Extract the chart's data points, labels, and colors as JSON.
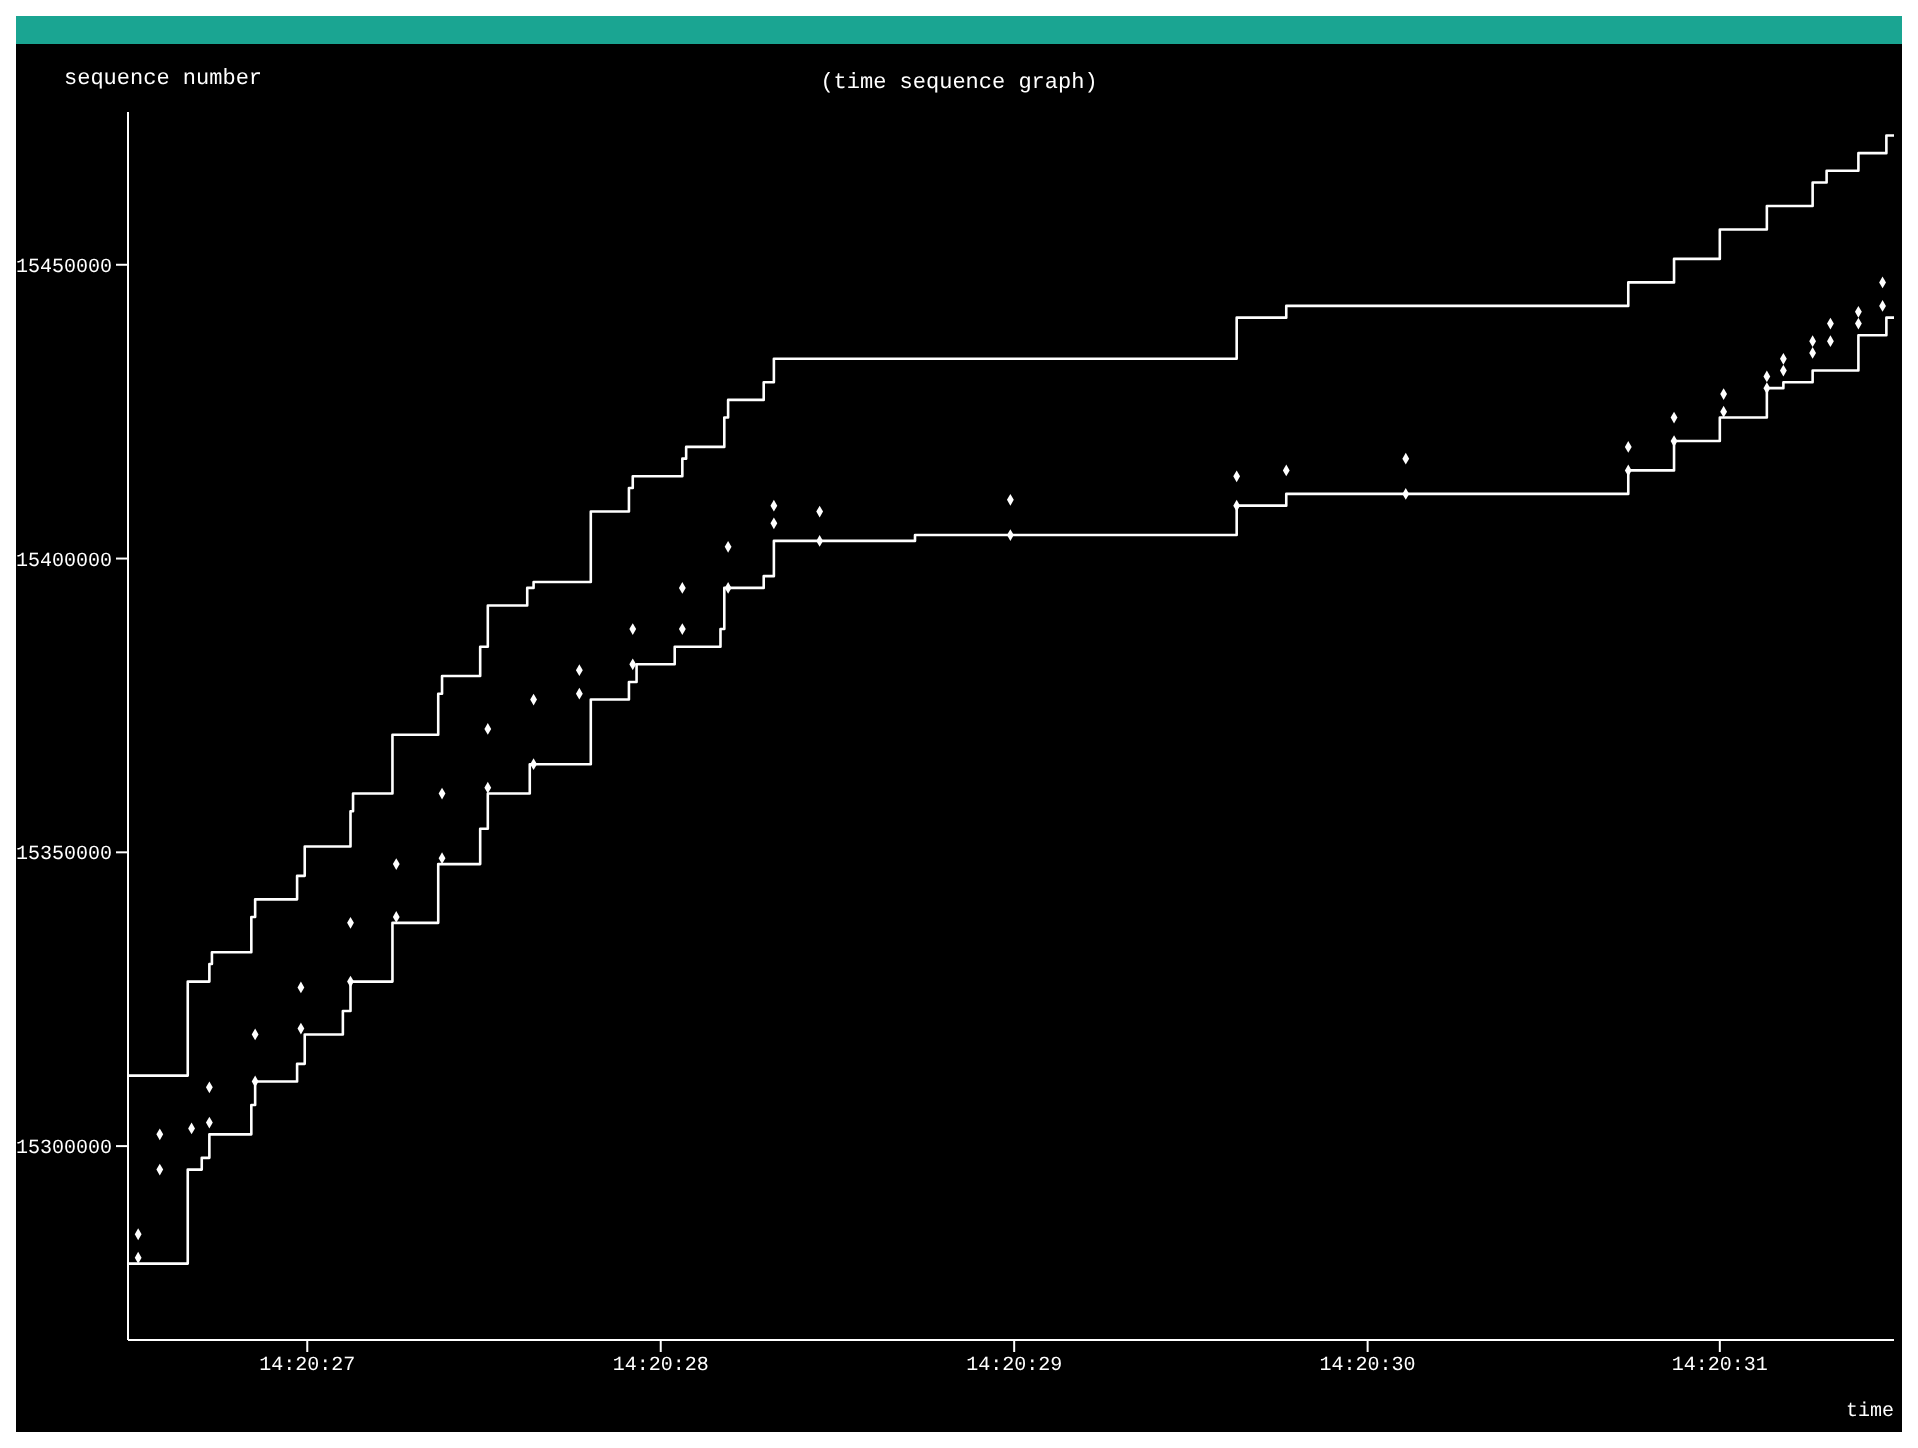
{
  "chart_data": {
    "type": "step",
    "title": "(time sequence graph)",
    "xlabel": "time",
    "ylabel": "sequence number",
    "xlim": [
      14.340692,
      14.342081
    ],
    "xticks": [
      {
        "value": 14.340833,
        "label": "14:20:27"
      },
      {
        "value": 14.341111,
        "label": "14:20:28"
      },
      {
        "value": 14.341389,
        "label": "14:20:29"
      },
      {
        "value": 14.341667,
        "label": "14:20:30"
      },
      {
        "value": 14.341944,
        "label": "14:20:31"
      }
    ],
    "ylim": [
      15267000,
      15476000
    ],
    "yticks": [
      15300000,
      15350000,
      15400000,
      15450000
    ],
    "series": [
      {
        "color": "#ffffff",
        "x": [
          14.340692,
          14.340739,
          14.340756,
          14.340758,
          14.340789,
          14.340792,
          14.340825,
          14.340831,
          14.340867,
          14.340869,
          14.3409,
          14.340936,
          14.340939,
          14.340969,
          14.340975,
          14.341006,
          14.341011,
          14.341056,
          14.341086,
          14.341089,
          14.341128,
          14.341131,
          14.341161,
          14.341164,
          14.341192,
          14.3412,
          14.341564,
          14.341603,
          14.341872,
          14.341908,
          14.341944,
          14.341981,
          14.342017,
          14.342028,
          14.342053,
          14.342075,
          14.342081
        ],
        "values": [
          15312000,
          15328000,
          15331000,
          15333000,
          15339000,
          15342000,
          15346000,
          15351000,
          15357000,
          15360000,
          15370000,
          15377000,
          15380000,
          15385000,
          15392000,
          15395000,
          15396000,
          15408000,
          15412000,
          15414000,
          15417000,
          15419000,
          15424000,
          15427000,
          15430000,
          15434000,
          15441000,
          15443000,
          15447000,
          15451000,
          15456000,
          15460000,
          15464000,
          15466000,
          15469000,
          15472000,
          15472000
        ]
      },
      {
        "color": "#ffffff",
        "x": [
          14.340692,
          14.340739,
          14.34075,
          14.340756,
          14.340789,
          14.340792,
          14.340825,
          14.340831,
          14.340861,
          14.340867,
          14.3409,
          14.340936,
          14.340969,
          14.340975,
          14.341008,
          14.341056,
          14.341086,
          14.341092,
          14.341122,
          14.341158,
          14.341161,
          14.341192,
          14.3412,
          14.341311,
          14.341564,
          14.341603,
          14.341872,
          14.341908,
          14.341944,
          14.341981,
          14.341994,
          14.342017,
          14.342053,
          14.342075,
          14.342081
        ],
        "values": [
          15280000,
          15296000,
          15298000,
          15302000,
          15307000,
          15311000,
          15314000,
          15319000,
          15323000,
          15328000,
          15338000,
          15348000,
          15354000,
          15360000,
          15365000,
          15376000,
          15379000,
          15382000,
          15385000,
          15388000,
          15395000,
          15397000,
          15403000,
          15404000,
          15409000,
          15411000,
          15415000,
          15420000,
          15424000,
          15429000,
          15430000,
          15432000,
          15438000,
          15441000,
          15441000
        ]
      },
      {
        "type": "scatter",
        "color": "#ffffff",
        "marker": "diamond",
        "x": [
          14.3407,
          14.3407,
          14.340717,
          14.340717,
          14.340742,
          14.340756,
          14.340756,
          14.340792,
          14.340792,
          14.340828,
          14.340828,
          14.340867,
          14.340867,
          14.340903,
          14.340903,
          14.340939,
          14.340939,
          14.340975,
          14.340975,
          14.341011,
          14.341011,
          14.341047,
          14.341047,
          14.341089,
          14.341089,
          14.341128,
          14.341128,
          14.341164,
          14.341164,
          14.3412,
          14.3412,
          14.341236,
          14.341236,
          14.341386,
          14.341386,
          14.341564,
          14.341564,
          14.341603,
          14.341697,
          14.341697,
          14.341872,
          14.341872,
          14.341908,
          14.341908,
          14.341947,
          14.341947,
          14.341981,
          14.341981,
          14.341994,
          14.341994,
          14.342017,
          14.342017,
          14.342031,
          14.342031,
          14.342053,
          14.342053,
          14.342072,
          14.342072
        ],
        "values": [
          15285000,
          15281000,
          15302000,
          15296000,
          15303000,
          15310000,
          15304000,
          15319000,
          15311000,
          15327000,
          15320000,
          15338000,
          15328000,
          15348000,
          15339000,
          15360000,
          15349000,
          15371000,
          15361000,
          15376000,
          15365000,
          15381000,
          15377000,
          15388000,
          15382000,
          15395000,
          15388000,
          15402000,
          15395000,
          15409000,
          15406000,
          15408000,
          15403000,
          15410000,
          15404000,
          15414000,
          15409000,
          15415000,
          15417000,
          15411000,
          15419000,
          15415000,
          15424000,
          15420000,
          15428000,
          15425000,
          15431000,
          15429000,
          15434000,
          15432000,
          15437000,
          15435000,
          15440000,
          15437000,
          15442000,
          15440000,
          15447000,
          15443000
        ]
      }
    ]
  }
}
